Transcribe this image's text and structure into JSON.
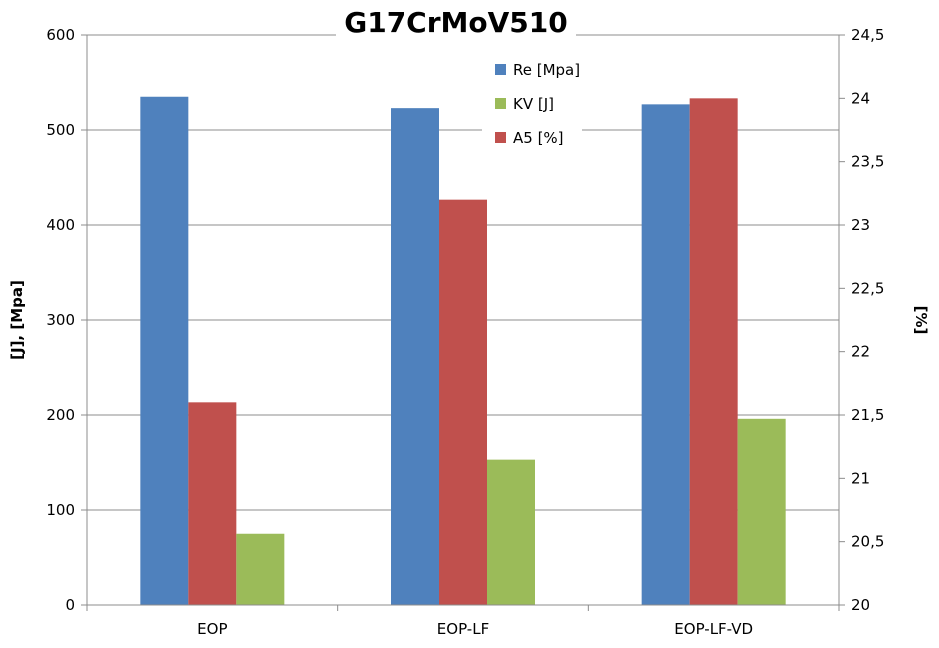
{
  "chart_data": {
    "type": "bar",
    "title": "G17CrMoV510",
    "categories": [
      "EOP",
      "EOP-LF",
      "EOP-LF-VD"
    ],
    "y_left_label": "[J], [Mpa]",
    "y_right_label": "[%]",
    "y_left_range": [
      0,
      600
    ],
    "y_right_range": [
      20,
      24.5
    ],
    "y_left_ticks": [
      "0",
      "100",
      "200",
      "300",
      "400",
      "500",
      "600"
    ],
    "y_right_ticks": [
      "20",
      "20,5",
      "21",
      "21,5",
      "22",
      "22,5",
      "23",
      "23,5",
      "24",
      "24,5"
    ],
    "grid": true,
    "legend_position": "top-center",
    "series": [
      {
        "name": "Re [Mpa]",
        "axis": "left",
        "color": "#4f81bd",
        "values": [
          535,
          523,
          527
        ]
      },
      {
        "name": "A5 [%]",
        "axis": "right",
        "color": "#c0504d",
        "values": [
          21.6,
          23.2,
          24.0
        ]
      },
      {
        "name": "KV [J]",
        "axis": "left",
        "color": "#9bbb59",
        "values": [
          75,
          153,
          196
        ]
      }
    ],
    "legend_order": [
      "Re [Mpa]",
      "KV [J]",
      "A5 [%]"
    ]
  }
}
